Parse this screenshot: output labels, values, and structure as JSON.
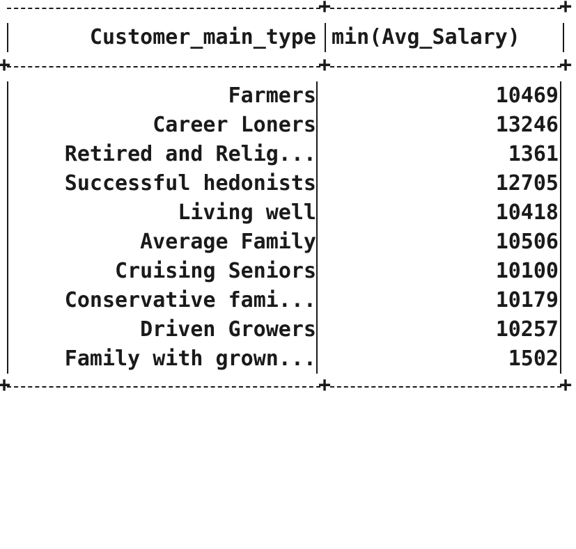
{
  "table": {
    "headers": [
      "Customer_main_type",
      "min(Avg_Salary)"
    ],
    "rows": [
      [
        "Farmers",
        "10469"
      ],
      [
        "Career Loners",
        "13246"
      ],
      [
        "Retired and Relig...",
        "1361"
      ],
      [
        "Successful hedonists",
        "12705"
      ],
      [
        "Living well",
        "10418"
      ],
      [
        "Average Family",
        "10506"
      ],
      [
        "Cruising Seniors",
        "10100"
      ],
      [
        "Conservative fami...",
        "10179"
      ],
      [
        "Driven Growers",
        "10257"
      ],
      [
        "Family with grown...",
        "1502"
      ]
    ]
  }
}
